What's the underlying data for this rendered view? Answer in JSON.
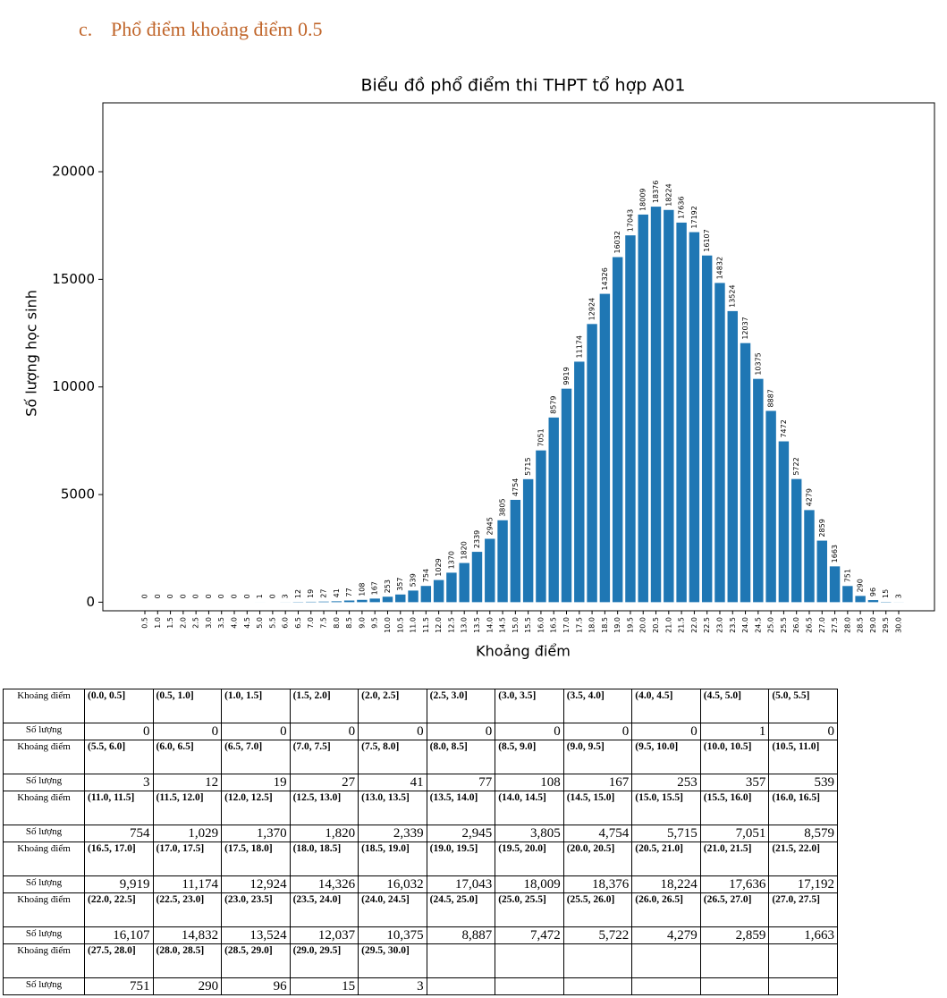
{
  "heading": {
    "marker": "c.",
    "text": "Phổ điểm khoảng điểm 0.5"
  },
  "chart_data": {
    "type": "bar",
    "title": "Biểu đồ phổ điểm thi THPT tổ hợp A01",
    "x_label": "Khoảng điểm",
    "y_label": "Số lượng học sinh",
    "categories": [
      "0.5",
      "1.0",
      "1.5",
      "2.0",
      "2.5",
      "3.0",
      "3.5",
      "4.0",
      "4.5",
      "5.0",
      "5.5",
      "6.0",
      "6.5",
      "7.0",
      "7.5",
      "8.0",
      "8.5",
      "9.0",
      "9.5",
      "10.0",
      "10.5",
      "11.0",
      "11.5",
      "12.0",
      "12.5",
      "13.0",
      "13.5",
      "14.0",
      "14.5",
      "15.0",
      "15.5",
      "16.0",
      "16.5",
      "17.0",
      "17.5",
      "18.0",
      "18.5",
      "19.0",
      "19.5",
      "20.0",
      "20.5",
      "21.0",
      "21.5",
      "22.0",
      "22.5",
      "23.0",
      "23.5",
      "24.0",
      "24.5",
      "25.0",
      "25.5",
      "26.0",
      "26.5",
      "27.0",
      "27.5",
      "28.0",
      "28.5",
      "29.0",
      "29.5",
      "30.0"
    ],
    "values": [
      0,
      0,
      0,
      0,
      0,
      0,
      0,
      0,
      0,
      1,
      0,
      3,
      12,
      19,
      27,
      41,
      77,
      108,
      167,
      253,
      357,
      539,
      754,
      1029,
      1370,
      1820,
      2339,
      2945,
      3805,
      4754,
      5715,
      7051,
      8579,
      9919,
      11174,
      12924,
      14326,
      16032,
      17043,
      18009,
      18376,
      18224,
      17636,
      17192,
      16107,
      14832,
      13524,
      12037,
      10375,
      8887,
      7472,
      5722,
      4279,
      2859,
      1663,
      751,
      290,
      96,
      15,
      3
    ],
    "color": "#1f77b4",
    "ylim": [
      -400,
      23200
    ],
    "yticks": [
      0,
      5000,
      10000,
      15000,
      20000
    ],
    "grid": false
  },
  "table": {
    "rows": [
      {
        "label": "Khoảng điểm",
        "cells": [
          "(0.0, 0.5]",
          "(0.5, 1.0]",
          "(1.0, 1.5]",
          "(1.5, 2.0]",
          "(2.0, 2.5]",
          "(2.5, 3.0]",
          "(3.0, 3.5]",
          "(3.5, 4.0]",
          "(4.0, 4.5]",
          "(4.5, 5.0]",
          "(5.0, 5.5]"
        ]
      },
      {
        "label": "Số lượng",
        "cells": [
          "0",
          "0",
          "0",
          "0",
          "0",
          "0",
          "0",
          "0",
          "0",
          "1",
          "0"
        ]
      },
      {
        "label": "Khoảng điểm",
        "cells": [
          "(5.5, 6.0]",
          "(6.0, 6.5]",
          "(6.5, 7.0]",
          "(7.0, 7.5]",
          "(7.5, 8.0]",
          "(8.0, 8.5]",
          "(8.5, 9.0]",
          "(9.0, 9.5]",
          "(9.5, 10.0]",
          "(10.0, 10.5]",
          "(10.5, 11.0]"
        ]
      },
      {
        "label": "Số lượng",
        "cells": [
          "3",
          "12",
          "19",
          "27",
          "41",
          "77",
          "108",
          "167",
          "253",
          "357",
          "539"
        ]
      },
      {
        "label": "Khoảng điểm",
        "cells": [
          "(11.0, 11.5]",
          "(11.5, 12.0]",
          "(12.0, 12.5]",
          "(12.5, 13.0]",
          "(13.0, 13.5]",
          "(13.5, 14.0]",
          "(14.0, 14.5]",
          "(14.5, 15.0]",
          "(15.0, 15.5]",
          "(15.5, 16.0]",
          "(16.0, 16.5]"
        ]
      },
      {
        "label": "Số lượng",
        "cells": [
          "754",
          "1,029",
          "1,370",
          "1,820",
          "2,339",
          "2,945",
          "3,805",
          "4,754",
          "5,715",
          "7,051",
          "8,579"
        ]
      },
      {
        "label": "Khoảng điểm",
        "cells": [
          "(16.5, 17.0]",
          "(17.0, 17.5]",
          "(17.5, 18.0]",
          "(18.0, 18.5]",
          "(18.5, 19.0]",
          "(19.0, 19.5]",
          "(19.5, 20.0]",
          "(20.0, 20.5]",
          "(20.5, 21.0]",
          "(21.0, 21.5]",
          "(21.5, 22.0]"
        ]
      },
      {
        "label": "Số lượng",
        "cells": [
          "9,919",
          "11,174",
          "12,924",
          "14,326",
          "16,032",
          "17,043",
          "18,009",
          "18,376",
          "18,224",
          "17,636",
          "17,192"
        ]
      },
      {
        "label": "Khoảng điểm",
        "cells": [
          "(22.0, 22.5]",
          "(22.5, 23.0]",
          "(23.0, 23.5]",
          "(23.5, 24.0]",
          "(24.0, 24.5]",
          "(24.5, 25.0]",
          "(25.0, 25.5]",
          "(25.5, 26.0]",
          "(26.0, 26.5]",
          "(26.5, 27.0]",
          "(27.0, 27.5]"
        ]
      },
      {
        "label": "Số lượng",
        "cells": [
          "16,107",
          "14,832",
          "13,524",
          "12,037",
          "10,375",
          "8,887",
          "7,472",
          "5,722",
          "4,279",
          "2,859",
          "1,663"
        ]
      },
      {
        "label": "Khoảng điểm",
        "cells": [
          "(27.5, 28.0]",
          "(28.0, 28.5]",
          "(28.5, 29.0]",
          "(29.0, 29.5]",
          "(29.5, 30.0]"
        ]
      },
      {
        "label": "Số lượng",
        "cells": [
          "751",
          "290",
          "96",
          "15",
          "3"
        ]
      }
    ]
  }
}
